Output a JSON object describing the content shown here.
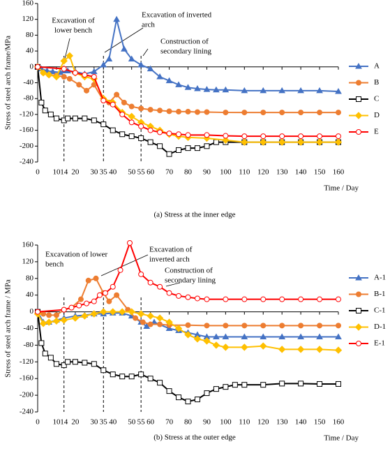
{
  "chart_data": [
    {
      "type": "line",
      "caption": "(a) Stress at the inner edge",
      "ylabel": "Stress of steel arch frame/MPa",
      "xlabel": "Time / Day",
      "xlim": [
        0,
        160
      ],
      "ylim": [
        -240,
        160
      ],
      "xticks": [
        0,
        10,
        14,
        20,
        30,
        35,
        40,
        50,
        55,
        60,
        70,
        80,
        90,
        100,
        110,
        120,
        130,
        140,
        150,
        160
      ],
      "yticks": [
        -240,
        -200,
        -160,
        -120,
        -80,
        -40,
        0,
        40,
        80,
        120,
        160
      ],
      "vlines": [
        14,
        35,
        55
      ],
      "annotations": [
        [
          "Excavation of",
          "lower bench"
        ],
        [
          "Excavation of inverted",
          "arch"
        ],
        [
          "Construction of",
          "secondary lining"
        ]
      ],
      "series": [
        {
          "name": "A",
          "color": "#4472C4",
          "marker": "triangle",
          "x": [
            0,
            2,
            5,
            8,
            12,
            14,
            16,
            20,
            25,
            30,
            35,
            38,
            42,
            46,
            50,
            55,
            60,
            65,
            70,
            75,
            80,
            85,
            90,
            95,
            100,
            110,
            120,
            130,
            140,
            150,
            160
          ],
          "values": [
            0,
            -5,
            -10,
            -12,
            -14,
            -10,
            -10,
            -12,
            -18,
            -12,
            5,
            20,
            120,
            45,
            20,
            5,
            -5,
            -25,
            -35,
            -45,
            -52,
            -55,
            -57,
            -58,
            -58,
            -60,
            -60,
            -60,
            -60,
            -60,
            -62
          ]
        },
        {
          "name": "B",
          "color": "#ED7D31",
          "marker": "circle",
          "x": [
            0,
            3,
            6,
            10,
            14,
            17,
            22,
            26,
            30,
            35,
            38,
            42,
            46,
            50,
            55,
            60,
            65,
            70,
            75,
            80,
            85,
            90,
            100,
            110,
            120,
            130,
            140,
            150,
            160
          ],
          "values": [
            0,
            -15,
            -20,
            -22,
            -25,
            -30,
            -45,
            -60,
            -45,
            -85,
            -90,
            -70,
            -90,
            -100,
            -105,
            -108,
            -110,
            -112,
            -113,
            -113,
            -114,
            -114,
            -115,
            -115,
            -115,
            -115,
            -115,
            -115,
            -115
          ]
        },
        {
          "name": "C",
          "color": "#000000",
          "marker": "square",
          "x": [
            0,
            2,
            4,
            7,
            10,
            14,
            16,
            20,
            25,
            30,
            35,
            40,
            45,
            50,
            55,
            60,
            65,
            70,
            75,
            80,
            85,
            90,
            95,
            100,
            110,
            120,
            130,
            140,
            150,
            160
          ],
          "values": [
            0,
            -90,
            -110,
            -120,
            -130,
            -135,
            -130,
            -130,
            -130,
            -135,
            -145,
            -160,
            -170,
            -175,
            -180,
            -190,
            -200,
            -220,
            -210,
            -205,
            -205,
            -200,
            -190,
            -190,
            -190,
            -190,
            -190,
            -190,
            -190,
            -190
          ]
        },
        {
          "name": "D",
          "color": "#FFC000",
          "marker": "diamond",
          "x": [
            0,
            3,
            6,
            10,
            14,
            17,
            20,
            25,
            30,
            35,
            40,
            45,
            50,
            55,
            60,
            65,
            70,
            75,
            80,
            90,
            100,
            110,
            120,
            130,
            140,
            150,
            160
          ],
          "values": [
            0,
            -15,
            -20,
            -25,
            15,
            28,
            -15,
            -25,
            -30,
            -80,
            -90,
            -115,
            -125,
            -140,
            -150,
            -160,
            -170,
            -175,
            -178,
            -180,
            -185,
            -190,
            -190,
            -190,
            -190,
            -190,
            -190
          ]
        },
        {
          "name": "E",
          "color": "#FF0000",
          "marker": "open-circle",
          "x": [
            0,
            14,
            20,
            25,
            30,
            35,
            40,
            45,
            50,
            55,
            60,
            65,
            70,
            75,
            80,
            90,
            100,
            110,
            120,
            130,
            140,
            150,
            160
          ],
          "values": [
            0,
            -5,
            -15,
            -20,
            -25,
            -85,
            -95,
            -120,
            -140,
            -150,
            -160,
            -165,
            -168,
            -170,
            -172,
            -172,
            -174,
            -175,
            -175,
            -175,
            -175,
            -175,
            -175
          ]
        }
      ]
    },
    {
      "type": "line",
      "caption": "(b) Stress at the outer edge",
      "ylabel": "Stress of steel arch frame / MPa",
      "xlabel": "Time / Day",
      "xlim": [
        0,
        160
      ],
      "ylim": [
        -240,
        160
      ],
      "xticks": [
        0,
        10,
        14,
        20,
        30,
        35,
        40,
        50,
        55,
        60,
        70,
        80,
        90,
        100,
        110,
        120,
        130,
        140,
        150,
        160
      ],
      "yticks": [
        -240,
        -200,
        -160,
        -120,
        -80,
        -40,
        0,
        40,
        80,
        120,
        160
      ],
      "vlines": [
        14,
        35,
        55
      ],
      "annotations": [
        [
          "Excavation of lower",
          "bench"
        ],
        [
          "Excavation of",
          "inverted arch"
        ],
        [
          "Construction of",
          "secondary lining"
        ]
      ],
      "series": [
        {
          "name": "A-1",
          "color": "#4472C4",
          "marker": "triangle",
          "x": [
            0,
            3,
            6,
            10,
            14,
            20,
            25,
            30,
            35,
            40,
            45,
            50,
            55,
            58,
            62,
            70,
            75,
            80,
            85,
            90,
            95,
            100,
            110,
            120,
            130,
            140,
            150,
            160
          ],
          "values": [
            0,
            -25,
            -25,
            -20,
            -15,
            -10,
            -8,
            -5,
            -5,
            -3,
            -3,
            -10,
            -25,
            -35,
            -25,
            -40,
            -45,
            -50,
            -55,
            -60,
            -60,
            -60,
            -60,
            -60,
            -60,
            -60,
            -60,
            -60
          ]
        },
        {
          "name": "B-1",
          "color": "#ED7D31",
          "marker": "circle",
          "x": [
            0,
            3,
            6,
            10,
            14,
            18,
            23,
            27,
            31,
            35,
            38,
            42,
            48,
            52,
            56,
            60,
            65,
            70,
            80,
            90,
            100,
            110,
            120,
            130,
            140,
            150,
            160
          ],
          "values": [
            0,
            -5,
            -8,
            -8,
            5,
            10,
            30,
            75,
            80,
            45,
            25,
            40,
            5,
            -15,
            -25,
            -30,
            -30,
            -32,
            -32,
            -33,
            -33,
            -33,
            -33,
            -33,
            -33,
            -33,
            -33
          ]
        },
        {
          "name": "C-1",
          "color": "#000000",
          "marker": "square",
          "x": [
            0,
            2,
            4,
            7,
            10,
            14,
            16,
            20,
            25,
            30,
            35,
            40,
            45,
            50,
            55,
            60,
            65,
            70,
            75,
            80,
            85,
            90,
            95,
            100,
            105,
            110,
            120,
            130,
            140,
            150,
            160
          ],
          "values": [
            0,
            -75,
            -100,
            -110,
            -125,
            -128,
            -120,
            -120,
            -122,
            -125,
            -140,
            -150,
            -155,
            -155,
            -150,
            -160,
            -170,
            -190,
            -205,
            -215,
            -210,
            -195,
            -185,
            -180,
            -175,
            -175,
            -175,
            -172,
            -172,
            -173,
            -173
          ]
        },
        {
          "name": "D-1",
          "color": "#FFC000",
          "marker": "diamond",
          "x": [
            0,
            3,
            6,
            10,
            14,
            20,
            25,
            30,
            35,
            40,
            45,
            50,
            55,
            60,
            65,
            70,
            75,
            80,
            85,
            90,
            95,
            100,
            110,
            120,
            130,
            140,
            150,
            160
          ],
          "values": [
            -5,
            -28,
            -25,
            -22,
            -20,
            -15,
            -10,
            -5,
            0,
            0,
            0,
            0,
            -5,
            -10,
            -15,
            -25,
            -40,
            -55,
            -65,
            -70,
            -80,
            -85,
            -85,
            -82,
            -90,
            -90,
            -90,
            -92
          ]
        },
        {
          "name": "E-1",
          "color": "#FF0000",
          "marker": "open-circle",
          "x": [
            0,
            14,
            18,
            22,
            26,
            30,
            33,
            36,
            40,
            44,
            49,
            55,
            60,
            65,
            70,
            75,
            80,
            85,
            90,
            100,
            110,
            120,
            130,
            140,
            150,
            160
          ],
          "values": [
            0,
            5,
            10,
            15,
            20,
            25,
            40,
            45,
            60,
            100,
            165,
            90,
            70,
            60,
            45,
            38,
            35,
            32,
            30,
            30,
            30,
            30,
            30,
            30,
            30,
            30
          ]
        }
      ]
    }
  ]
}
